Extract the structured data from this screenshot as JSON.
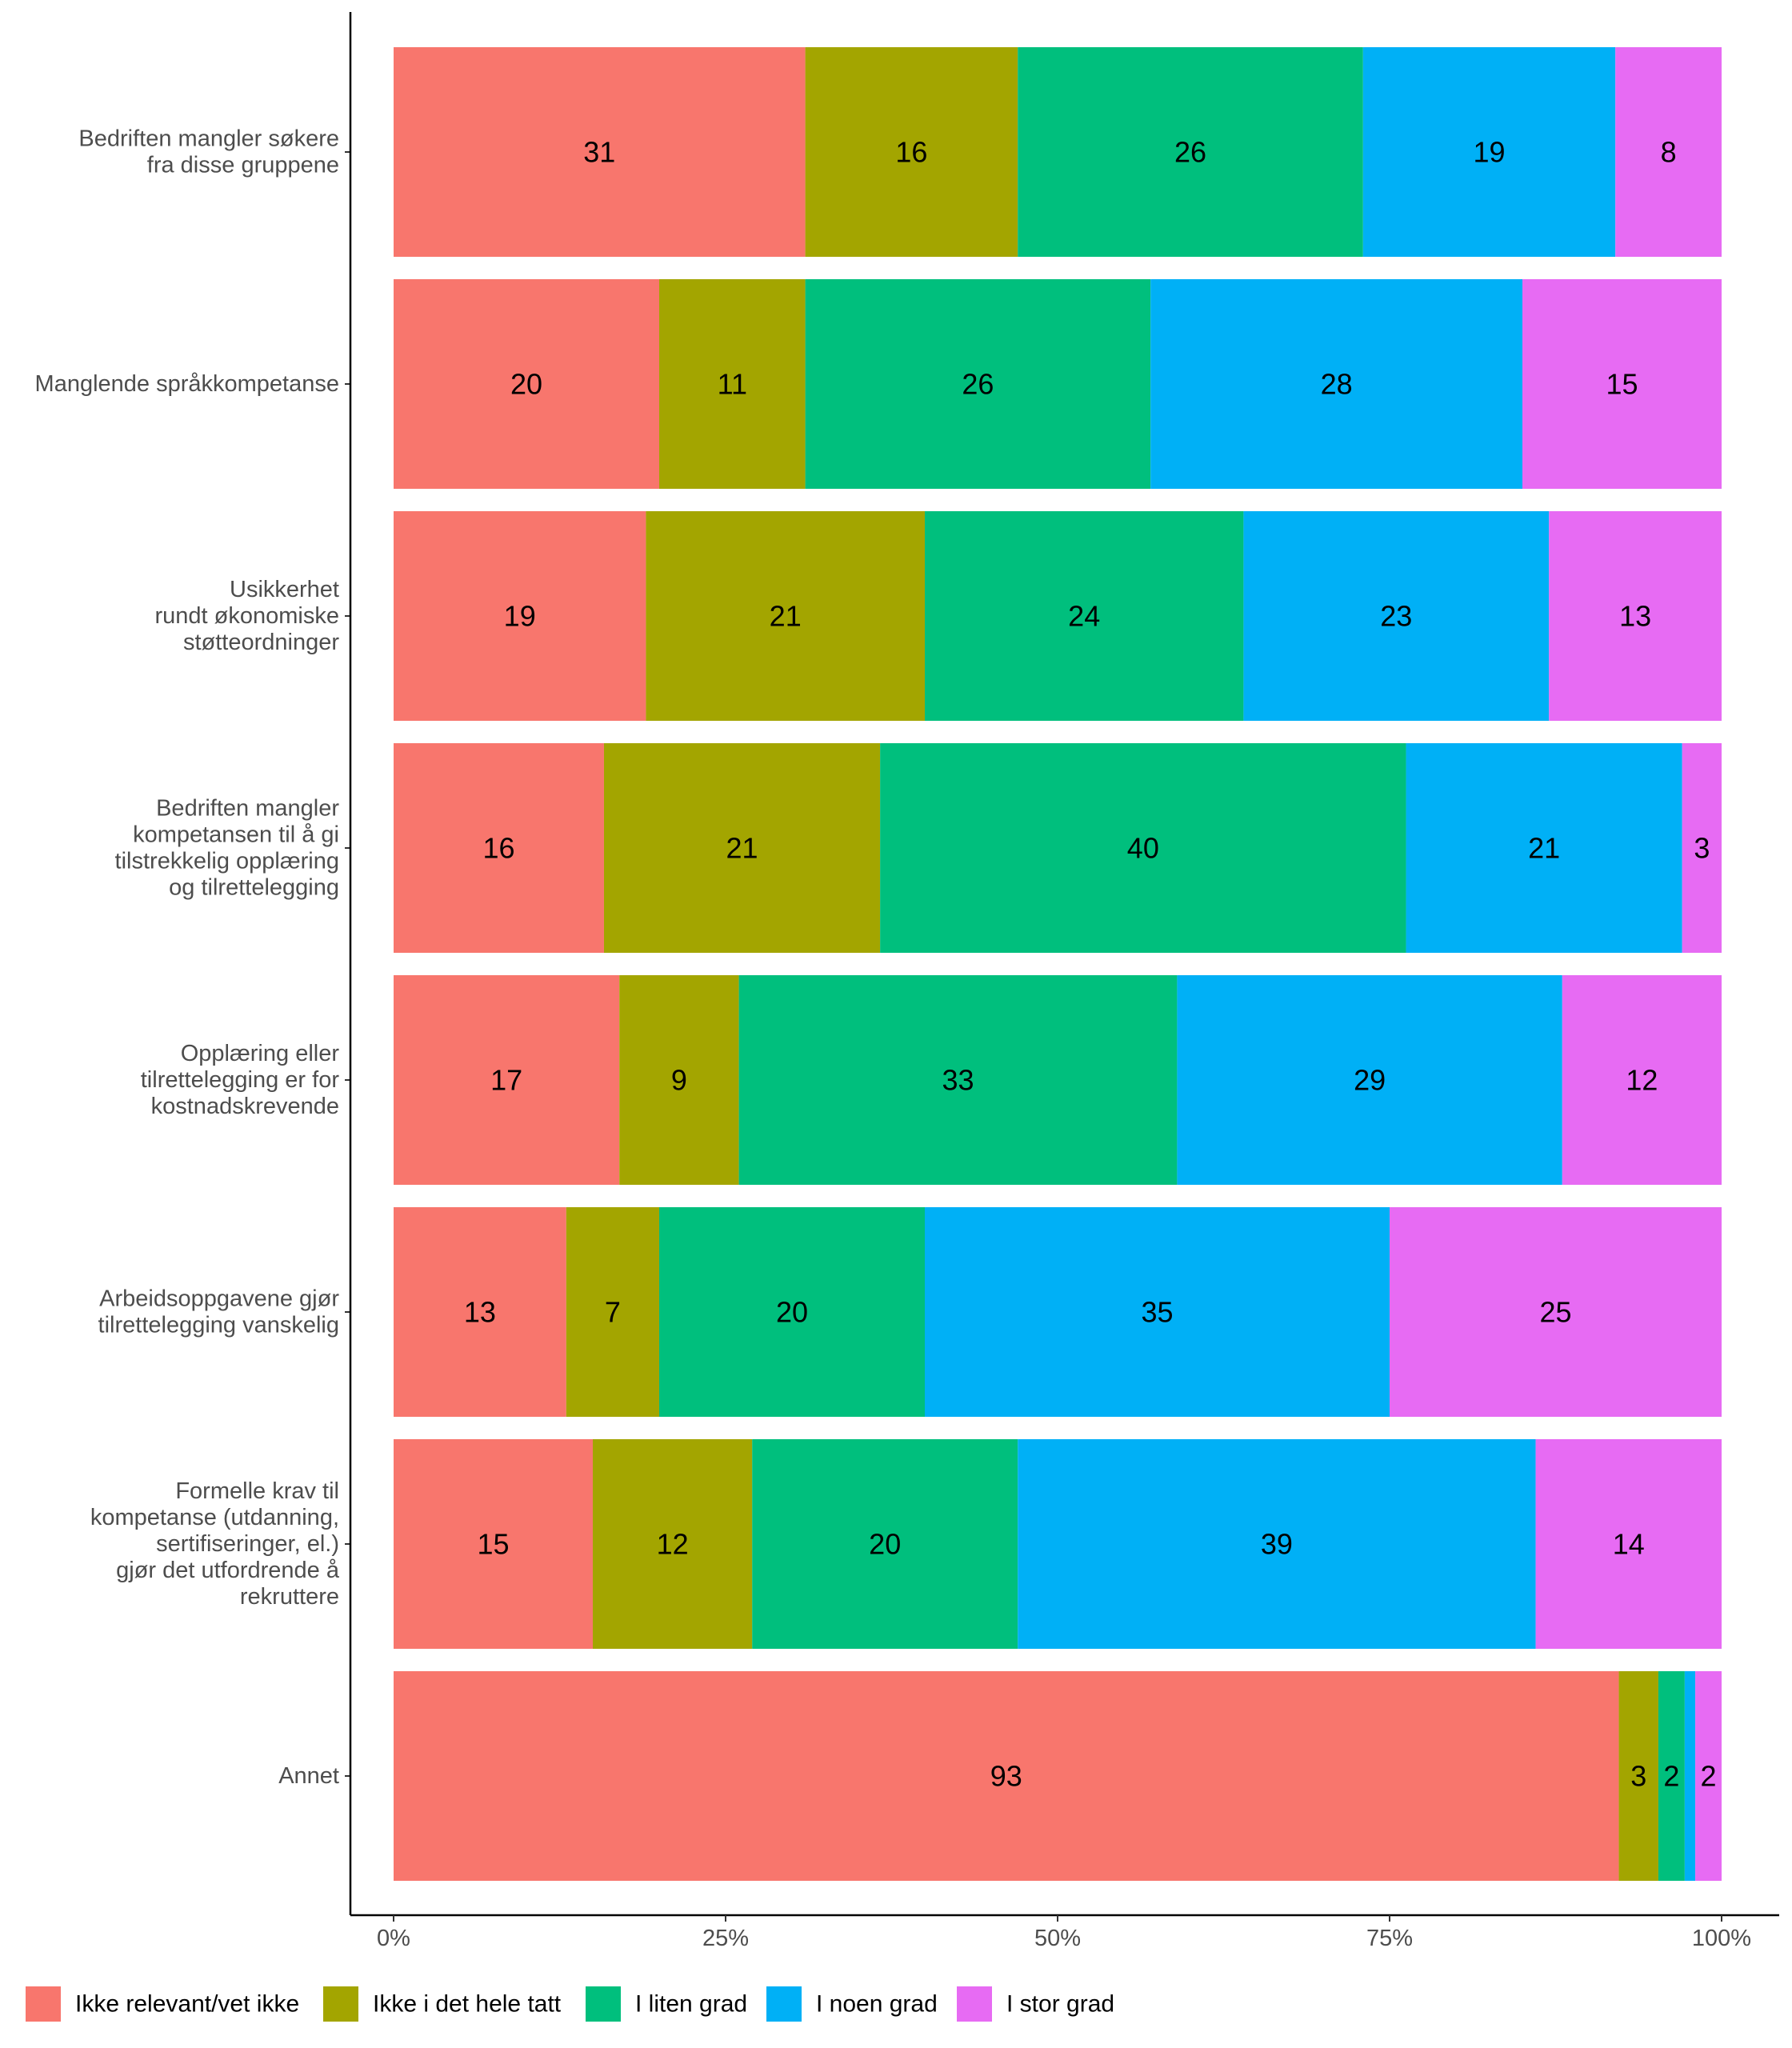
{
  "chart_data": {
    "type": "bar",
    "orientation": "horizontal",
    "stacked": true,
    "normalized": true,
    "categories": [
      [
        "Bedriften mangler søkere",
        "fra disse gruppene"
      ],
      [
        "Manglende språkkompetanse"
      ],
      [
        "Usikkerhet",
        "rundt økonomiske",
        "støtteordninger"
      ],
      [
        "Bedriften mangler",
        "kompetansen til å gi",
        "tilstrekkelig opplæring",
        "og tilrettelegging"
      ],
      [
        "Opplæring eller",
        "tilrettelegging er for",
        "kostnadskrevende"
      ],
      [
        "Arbeidsoppgavene gjør",
        "tilrettelegging vanskelig"
      ],
      [
        "Formelle krav til",
        "kompetanse (utdanning,",
        "sertifiseringer, el.)",
        "gjør det utfordrende å",
        "rekruttere"
      ],
      [
        "Annet"
      ]
    ],
    "series": [
      {
        "name": "Ikke relevant/vet ikke",
        "color": "#F8766D",
        "values": [
          31,
          20,
          19,
          16,
          17,
          13,
          15,
          93
        ]
      },
      {
        "name": "Ikke i det hele tatt",
        "color": "#A3A500",
        "values": [
          16,
          11,
          21,
          21,
          9,
          7,
          12,
          3
        ]
      },
      {
        "name": "I liten grad",
        "color": "#00BF7D",
        "values": [
          26,
          26,
          24,
          40,
          33,
          20,
          20,
          2
        ]
      },
      {
        "name": "I noen grad",
        "color": "#00B0F6",
        "values": [
          19,
          28,
          23,
          21,
          29,
          35,
          39,
          0.8
        ]
      },
      {
        "name": "I stor grad",
        "color": "#E76BF3",
        "values": [
          8,
          15,
          13,
          3,
          12,
          25,
          14,
          2
        ]
      }
    ],
    "value_labels": [
      [
        "31",
        "16",
        "26",
        "19",
        "8"
      ],
      [
        "20",
        "11",
        "26",
        "28",
        "15"
      ],
      [
        "19",
        "21",
        "24",
        "23",
        "13"
      ],
      [
        "16",
        "21",
        "40",
        "21",
        "3"
      ],
      [
        "17",
        "9",
        "33",
        "29",
        "12"
      ],
      [
        "13",
        "7",
        "20",
        "35",
        "25"
      ],
      [
        "15",
        "12",
        "20",
        "39",
        "14"
      ],
      [
        "93",
        "3",
        "2",
        "",
        "2"
      ]
    ],
    "x_ticks": [
      "0%",
      "25%",
      "50%",
      "75%",
      "100%"
    ],
    "xlim": [
      0,
      100
    ],
    "xlabel": "",
    "ylabel": "",
    "title": "",
    "grid": false,
    "legend_position": "bottom"
  }
}
